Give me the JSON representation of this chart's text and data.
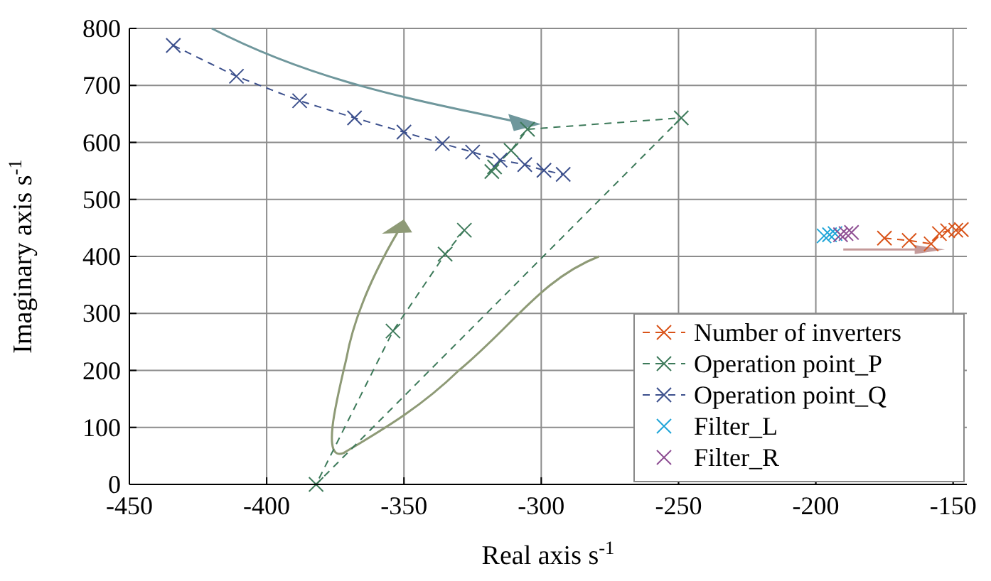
{
  "chart_data": {
    "type": "line",
    "xlabel": "Real axis s$^{-1}$",
    "ylabel": "Imaginary axis s$^{-1}$",
    "xlim": [
      -450,
      -145
    ],
    "ylim": [
      0,
      800
    ],
    "xticks": [
      -450,
      -400,
      -350,
      -300,
      -250,
      -200,
      -150
    ],
    "yticks": [
      0,
      100,
      200,
      300,
      400,
      500,
      600,
      700,
      800
    ],
    "grid": true,
    "legend": "bottom right",
    "marker": "cross",
    "line_style": "dashed",
    "series": [
      {
        "name": "Number of inverters",
        "color": "#d95319",
        "x": [
          -175,
          -166,
          -158,
          -155,
          -152,
          -149,
          -147
        ],
        "values": [
          432,
          428,
          422,
          440,
          445,
          446,
          447
        ]
      },
      {
        "name": "Operation point_P",
        "color": "#3d7a5a",
        "x": [
          -328,
          -335,
          -354,
          -382,
          -249,
          -305,
          -311,
          -317,
          -318
        ],
        "values": [
          446,
          404,
          269,
          0,
          643,
          623,
          586,
          557,
          549
        ]
      },
      {
        "name": "Operation point_Q",
        "color": "#3b4f8c",
        "x": [
          -434,
          -411,
          -388,
          -368,
          -350,
          -336,
          -325,
          -315,
          -306,
          -299,
          -292
        ],
        "values": [
          770,
          716,
          673,
          643,
          618,
          598,
          583,
          569,
          561,
          551,
          544
        ]
      },
      {
        "name": "Filter_L",
        "type": "scatter",
        "color": "#1fa5d8",
        "x": [
          -197,
          -195,
          -193
        ],
        "values": [
          436,
          438,
          440
        ]
      },
      {
        "name": "Filter_R",
        "type": "scatter",
        "color": "#8e4f93",
        "x": [
          -191,
          -189,
          -187
        ],
        "values": [
          438,
          440,
          442
        ]
      }
    ]
  }
}
